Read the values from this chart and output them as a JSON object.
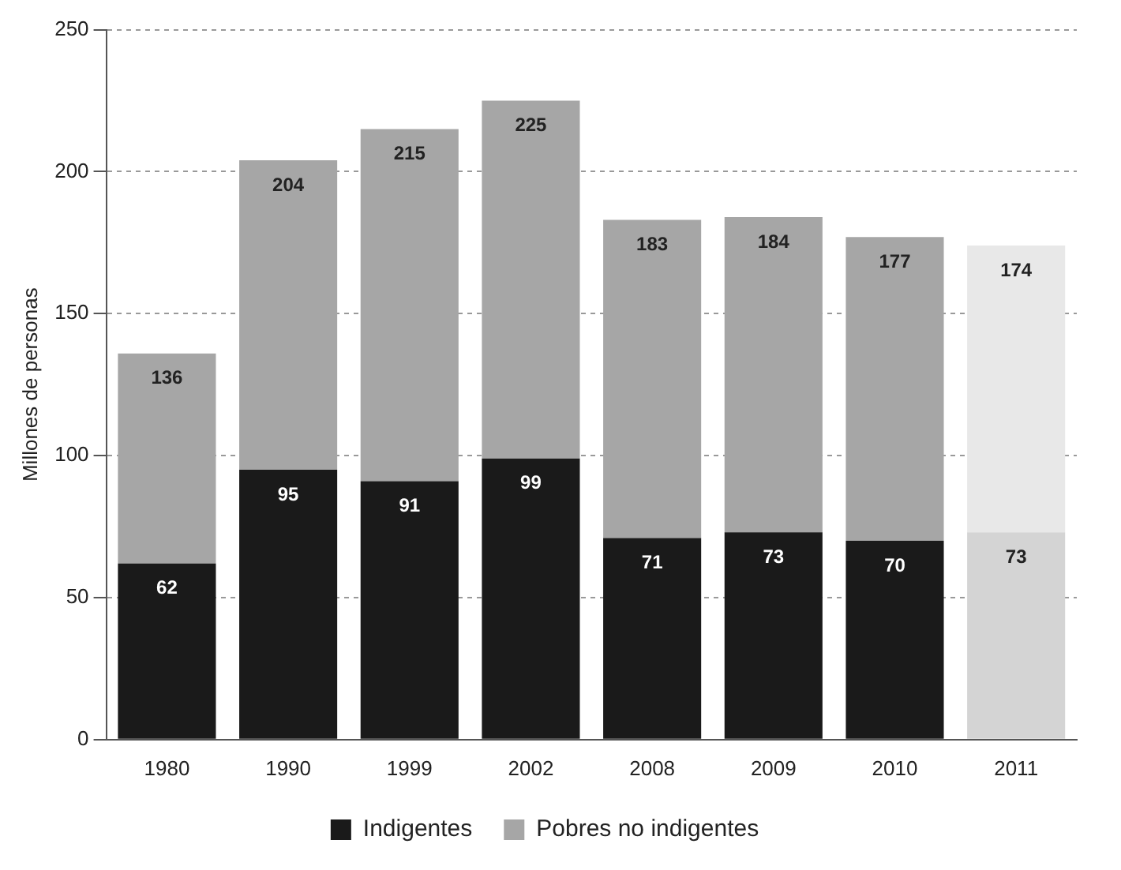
{
  "chart_data": {
    "type": "bar",
    "stacked": true,
    "ylabel": "Millones de personas",
    "categories": [
      "1980",
      "1990",
      "1999",
      "2002",
      "2008",
      "2009",
      "2010",
      "2011"
    ],
    "series": [
      {
        "name": "Indigentes",
        "color": "#1a1a1a",
        "colors": [
          "#1a1a1a",
          "#1a1a1a",
          "#1a1a1a",
          "#1a1a1a",
          "#1a1a1a",
          "#1a1a1a",
          "#1a1a1a",
          "#d4d4d4"
        ],
        "values": [
          62,
          95,
          91,
          99,
          71,
          73,
          70,
          73
        ],
        "value_labels": [
          "62",
          "95",
          "91",
          "99",
          "71",
          "73",
          "70",
          "73"
        ]
      },
      {
        "name": "Pobres no indigentes",
        "color": "#a6a6a6",
        "colors": [
          "#a6a6a6",
          "#a6a6a6",
          "#a6a6a6",
          "#a6a6a6",
          "#a6a6a6",
          "#a6a6a6",
          "#a6a6a6",
          "#e8e8e8"
        ],
        "values": [
          74,
          109,
          124,
          126,
          112,
          111,
          107,
          101
        ]
      }
    ],
    "totals": [
      "136",
      "204",
      "215",
      "225",
      "183",
      "184",
      "177",
      "174"
    ],
    "ylim": [
      0,
      250
    ],
    "yticks": [
      0,
      50,
      100,
      150,
      200,
      250
    ],
    "grid": "y",
    "legend": "bottom"
  }
}
